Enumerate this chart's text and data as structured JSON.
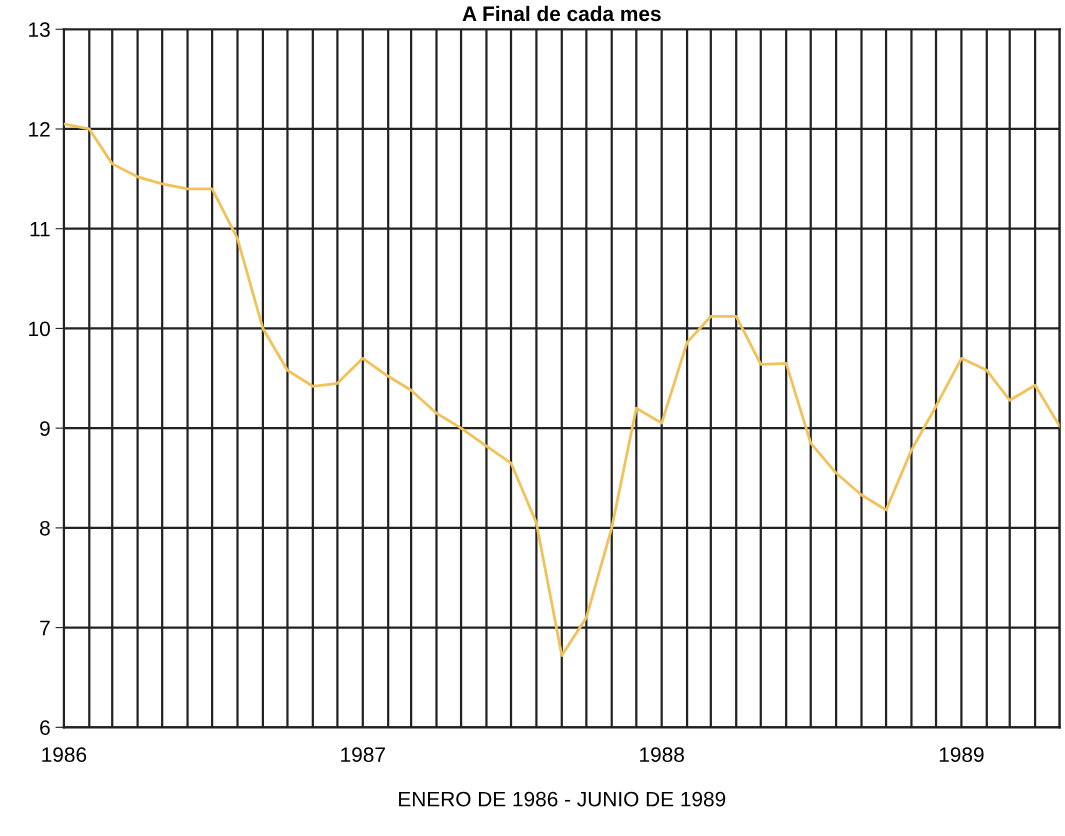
{
  "chart_data": {
    "type": "line",
    "title": "A Final de cada mes",
    "xlabel": "ENERO DE 1986 - JUNIO DE 1989",
    "x": [
      "1986-01",
      "1986-02",
      "1986-03",
      "1986-04",
      "1986-05",
      "1986-06",
      "1986-07",
      "1986-08",
      "1986-09",
      "1986-10",
      "1986-11",
      "1986-12",
      "1987-01",
      "1987-02",
      "1987-03",
      "1987-04",
      "1987-05",
      "1987-06",
      "1987-07",
      "1987-08",
      "1987-09",
      "1987-10",
      "1987-11",
      "1987-12",
      "1988-01",
      "1988-02",
      "1988-03",
      "1988-04",
      "1988-05",
      "1988-06",
      "1988-07",
      "1988-08",
      "1988-09",
      "1988-10",
      "1988-11",
      "1988-12",
      "1989-01",
      "1989-02",
      "1989-03",
      "1989-04",
      "1989-05"
    ],
    "series": [
      {
        "color": "#f2c25a",
        "values": [
          12.05,
          12.0,
          11.65,
          11.52,
          11.45,
          11.4,
          11.4,
          10.9,
          10.0,
          9.58,
          9.42,
          9.45,
          9.7,
          9.52,
          9.38,
          9.15,
          9.0,
          8.82,
          8.65,
          8.05,
          6.72,
          7.1,
          8.0,
          9.2,
          9.05,
          9.86,
          10.12,
          10.12,
          9.64,
          9.65,
          8.85,
          8.55,
          8.33,
          8.18,
          8.78,
          9.22,
          9.7,
          9.58,
          9.28,
          9.43,
          9.02
        ]
      }
    ],
    "xlim": [
      "1986-01",
      "1989-05"
    ],
    "xticks": [
      {
        "value": "1986-01",
        "label": "1986"
      },
      {
        "value": "1986-02",
        "label": null
      },
      {
        "value": "1986-03",
        "label": null
      },
      {
        "value": "1986-04",
        "label": null
      },
      {
        "value": "1986-05",
        "label": null
      },
      {
        "value": "1986-06",
        "label": null
      },
      {
        "value": "1986-07",
        "label": null
      },
      {
        "value": "1986-08",
        "label": null
      },
      {
        "value": "1986-09",
        "label": null
      },
      {
        "value": "1986-10",
        "label": null
      },
      {
        "value": "1986-11",
        "label": null
      },
      {
        "value": "1986-12",
        "label": null
      },
      {
        "value": "1987-01",
        "label": "1987"
      },
      {
        "value": "1987-02",
        "label": null
      },
      {
        "value": "1987-03",
        "label": null
      },
      {
        "value": "1987-04",
        "label": null
      },
      {
        "value": "1987-05",
        "label": null
      },
      {
        "value": "1987-06",
        "label": null
      },
      {
        "value": "1987-07",
        "label": null
      },
      {
        "value": "1987-08",
        "label": null
      },
      {
        "value": "1987-09",
        "label": null
      },
      {
        "value": "1987-10",
        "label": null
      },
      {
        "value": "1987-11",
        "label": null
      },
      {
        "value": "1987-12",
        "label": null
      },
      {
        "value": "1988-01",
        "label": "1988"
      },
      {
        "value": "1988-02",
        "label": null
      },
      {
        "value": "1988-03",
        "label": null
      },
      {
        "value": "1988-04",
        "label": null
      },
      {
        "value": "1988-05",
        "label": null
      },
      {
        "value": "1988-06",
        "label": null
      },
      {
        "value": "1988-07",
        "label": null
      },
      {
        "value": "1988-08",
        "label": null
      },
      {
        "value": "1988-09",
        "label": null
      },
      {
        "value": "1988-10",
        "label": null
      },
      {
        "value": "1988-11",
        "label": null
      },
      {
        "value": "1988-12",
        "label": null
      },
      {
        "value": "1989-01",
        "label": "1989"
      },
      {
        "value": "1989-02",
        "label": null
      },
      {
        "value": "1989-03",
        "label": null
      },
      {
        "value": "1989-04",
        "label": null
      },
      {
        "value": "1989-05",
        "label": null
      }
    ],
    "ylim": [
      6,
      13
    ],
    "yticks": [
      6,
      7,
      8,
      9,
      10,
      11,
      12,
      13
    ],
    "grid": true,
    "marker": "none",
    "line_style": "solid"
  }
}
